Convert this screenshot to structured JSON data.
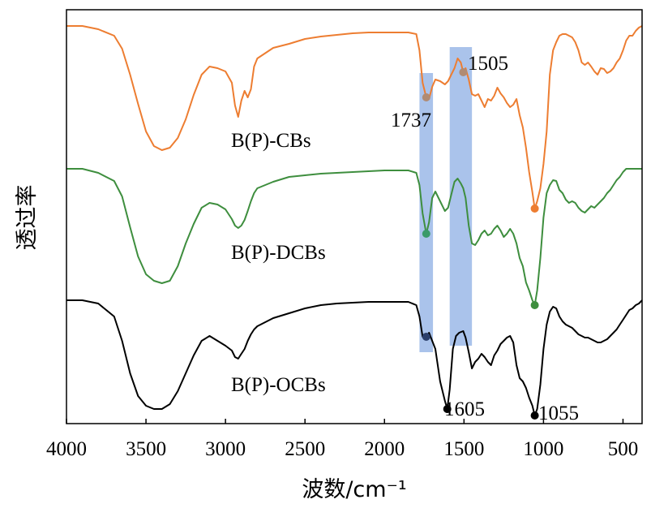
{
  "chart_data": {
    "type": "line",
    "xlabel": "波数/cm⁻¹",
    "ylabel": "透过率",
    "xlim": [
      4000,
      380
    ],
    "x_ticks": [
      4000,
      3500,
      3000,
      2500,
      2000,
      1500,
      1000,
      500
    ],
    "x_tick_labels": [
      "4000",
      "3500",
      "3000",
      "2500",
      "2000",
      "1500",
      "1000",
      "500"
    ],
    "y_ticks_shown": false,
    "legend": "none",
    "highlight_bands": [
      {
        "from": 1780,
        "to": 1695,
        "color": "#9bb8e8"
      },
      {
        "from": 1590,
        "to": 1450,
        "color": "#9bb8e8"
      }
    ],
    "annotations": [
      {
        "text": "1737",
        "x": 1737
      },
      {
        "text": "1505",
        "x": 1505
      },
      {
        "text": "1605",
        "x": 1605
      },
      {
        "text": "1055",
        "x": 1055
      }
    ],
    "series": [
      {
        "name": "B(P)-CBs",
        "color": "#ed7d31",
        "x": [
          4000,
          3900,
          3800,
          3700,
          3650,
          3600,
          3550,
          3500,
          3450,
          3400,
          3350,
          3300,
          3250,
          3200,
          3150,
          3100,
          3050,
          3000,
          2960,
          2940,
          2920,
          2900,
          2880,
          2860,
          2840,
          2820,
          2800,
          2700,
          2600,
          2500,
          2400,
          2300,
          2200,
          2100,
          2000,
          1900,
          1850,
          1800,
          1780,
          1760,
          1737,
          1720,
          1700,
          1680,
          1650,
          1620,
          1600,
          1580,
          1560,
          1540,
          1520,
          1505,
          1490,
          1470,
          1450,
          1430,
          1410,
          1390,
          1370,
          1350,
          1330,
          1310,
          1290,
          1270,
          1250,
          1230,
          1210,
          1190,
          1170,
          1150,
          1130,
          1110,
          1090,
          1070,
          1055,
          1040,
          1020,
          1000,
          980,
          960,
          940,
          920,
          900,
          880,
          860,
          840,
          820,
          800,
          780,
          760,
          740,
          720,
          700,
          680,
          660,
          640,
          620,
          600,
          580,
          560,
          540,
          520,
          500,
          480,
          460,
          440,
          420,
          400,
          380
        ],
        "y": [
          0,
          0,
          4,
          12,
          28,
          60,
          96,
          130,
          148,
          153,
          150,
          138,
          115,
          85,
          60,
          50,
          52,
          56,
          70,
          98,
          112,
          92,
          80,
          88,
          78,
          50,
          40,
          27,
          22,
          16,
          13,
          11,
          9,
          8,
          8,
          8,
          8,
          10,
          30,
          70,
          88,
          90,
          75,
          66,
          68,
          72,
          68,
          60,
          52,
          40,
          45,
          57,
          52,
          66,
          84,
          86,
          84,
          92,
          100,
          90,
          92,
          86,
          76,
          83,
          88,
          95,
          100,
          97,
          90,
          110,
          125,
          150,
          180,
          205,
          225,
          216,
          200,
          170,
          130,
          60,
          30,
          20,
          12,
          10,
          10,
          12,
          14,
          20,
          30,
          45,
          48,
          45,
          50,
          56,
          60,
          52,
          53,
          58,
          56,
          52,
          45,
          40,
          30,
          18,
          12,
          12,
          6,
          2,
          0
        ]
      },
      {
        "name": "B(P)-DCBs",
        "color": "#3e8e3e",
        "x": [
          4000,
          3900,
          3800,
          3700,
          3650,
          3600,
          3550,
          3500,
          3450,
          3400,
          3350,
          3300,
          3250,
          3200,
          3150,
          3100,
          3050,
          3000,
          2960,
          2940,
          2920,
          2900,
          2880,
          2860,
          2840,
          2820,
          2800,
          2700,
          2600,
          2500,
          2400,
          2300,
          2200,
          2100,
          2000,
          1900,
          1850,
          1800,
          1780,
          1760,
          1737,
          1720,
          1700,
          1680,
          1650,
          1620,
          1600,
          1580,
          1560,
          1540,
          1520,
          1505,
          1490,
          1470,
          1450,
          1430,
          1410,
          1390,
          1370,
          1350,
          1330,
          1310,
          1290,
          1270,
          1250,
          1230,
          1210,
          1190,
          1170,
          1150,
          1130,
          1110,
          1090,
          1070,
          1055,
          1040,
          1020,
          1000,
          980,
          960,
          940,
          920,
          900,
          880,
          860,
          840,
          820,
          800,
          780,
          760,
          740,
          720,
          700,
          680,
          660,
          640,
          620,
          600,
          580,
          560,
          540,
          520,
          500,
          480,
          460,
          440,
          420,
          400,
          380
        ],
        "y": [
          0,
          0,
          5,
          15,
          34,
          72,
          108,
          130,
          138,
          141,
          138,
          120,
          92,
          68,
          48,
          42,
          44,
          50,
          62,
          70,
          73,
          70,
          63,
          52,
          40,
          30,
          24,
          16,
          10,
          8,
          6,
          5,
          4,
          3,
          2,
          2,
          2,
          5,
          20,
          55,
          80,
          66,
          36,
          28,
          40,
          52,
          48,
          32,
          16,
          12,
          18,
          24,
          36,
          70,
          92,
          94,
          88,
          80,
          76,
          82,
          80,
          74,
          70,
          76,
          84,
          80,
          74,
          80,
          92,
          110,
          120,
          140,
          150,
          162,
          168,
          150,
          110,
          60,
          30,
          20,
          14,
          15,
          26,
          30,
          38,
          42,
          40,
          42,
          48,
          52,
          54,
          50,
          46,
          48,
          44,
          40,
          36,
          30,
          26,
          20,
          14,
          10,
          4,
          0,
          0,
          0,
          0,
          0,
          0
        ]
      },
      {
        "name": "B(P)-OCBs",
        "color": "#000000",
        "x": [
          4000,
          3900,
          3800,
          3700,
          3650,
          3600,
          3550,
          3500,
          3450,
          3400,
          3350,
          3300,
          3250,
          3200,
          3150,
          3100,
          3050,
          3000,
          2960,
          2940,
          2920,
          2900,
          2880,
          2860,
          2840,
          2820,
          2800,
          2700,
          2600,
          2500,
          2400,
          2300,
          2200,
          2100,
          2000,
          1900,
          1850,
          1800,
          1780,
          1760,
          1737,
          1720,
          1700,
          1680,
          1650,
          1620,
          1605,
          1590,
          1570,
          1550,
          1530,
          1505,
          1490,
          1470,
          1450,
          1430,
          1410,
          1390,
          1370,
          1350,
          1330,
          1310,
          1290,
          1270,
          1250,
          1230,
          1210,
          1190,
          1170,
          1150,
          1130,
          1110,
          1090,
          1070,
          1055,
          1040,
          1020,
          1000,
          980,
          960,
          940,
          920,
          900,
          880,
          860,
          840,
          820,
          800,
          780,
          760,
          740,
          720,
          700,
          680,
          660,
          640,
          620,
          600,
          580,
          560,
          540,
          520,
          500,
          480,
          460,
          440,
          420,
          400,
          380
        ],
        "y": [
          0,
          0,
          4,
          20,
          50,
          90,
          118,
          130,
          134,
          134,
          128,
          112,
          90,
          68,
          50,
          44,
          50,
          56,
          62,
          70,
          72,
          66,
          60,
          50,
          42,
          36,
          32,
          22,
          16,
          10,
          6,
          4,
          3,
          2,
          2,
          2,
          2,
          6,
          20,
          45,
          45,
          40,
          50,
          60,
          100,
          124,
          134,
          110,
          60,
          44,
          40,
          38,
          46,
          64,
          84,
          76,
          72,
          66,
          70,
          76,
          80,
          68,
          62,
          54,
          50,
          46,
          44,
          52,
          80,
          96,
          100,
          108,
          120,
          130,
          142,
          134,
          104,
          60,
          30,
          14,
          8,
          10,
          20,
          26,
          30,
          32,
          34,
          38,
          42,
          44,
          46,
          46,
          48,
          50,
          52,
          52,
          50,
          48,
          44,
          40,
          36,
          30,
          24,
          18,
          12,
          10,
          6,
          4,
          0
        ]
      }
    ]
  }
}
